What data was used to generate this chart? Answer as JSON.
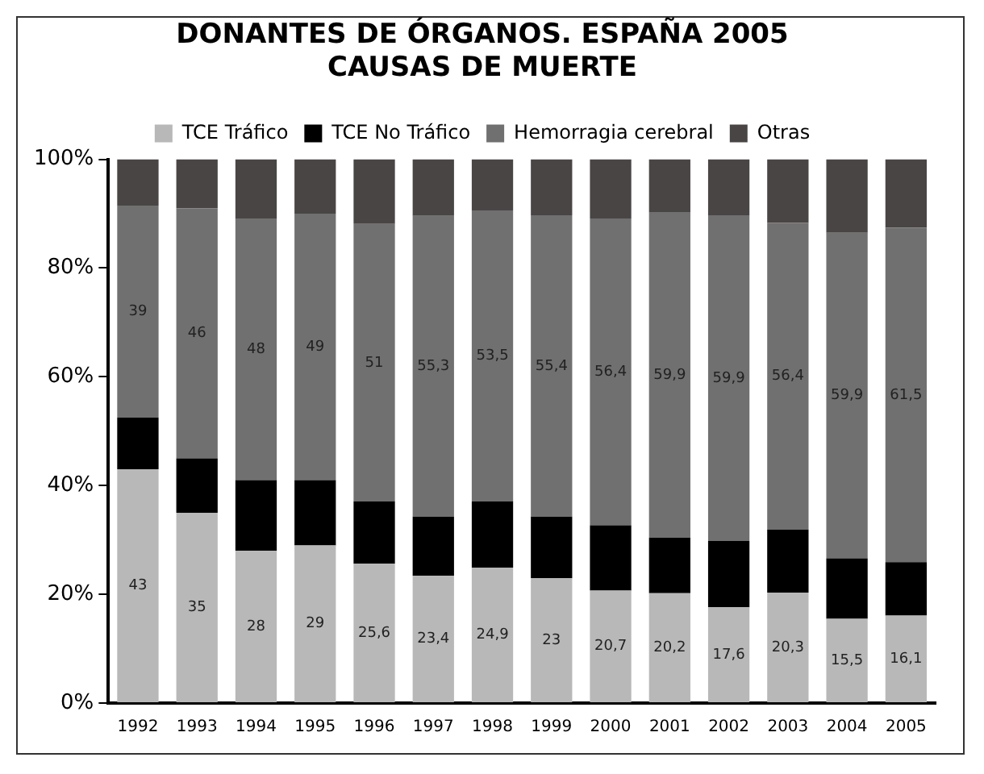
{
  "chart_data": {
    "type": "bar",
    "stacked": true,
    "title": [
      "DONANTES DE ÓRGANOS. ESPAÑA 2005",
      "CAUSAS DE MUERTE"
    ],
    "categories": [
      "1992",
      "1993",
      "1994",
      "1995",
      "1996",
      "1997",
      "1998",
      "1999",
      "2000",
      "2001",
      "2002",
      "2003",
      "2004",
      "2005"
    ],
    "series": [
      {
        "name": "TCE Tráfico",
        "color": "#b8b8b8",
        "values": [
          43,
          35,
          28,
          29,
          25.6,
          23.4,
          24.9,
          23,
          20.7,
          20.2,
          17.6,
          20.3,
          15.5,
          16.1
        ],
        "value_labels": [
          "43",
          "35",
          "28",
          "29",
          "25,6",
          "23,4",
          "24,9",
          "23",
          "20,7",
          "20,2",
          "17,6",
          "20,3",
          "15,5",
          "16,1"
        ]
      },
      {
        "name": "TCE No Tráfico",
        "color": "#000000",
        "values": [
          9.5,
          10,
          13,
          12,
          11.5,
          10.9,
          12.2,
          11.3,
          12,
          10.2,
          12.2,
          11.6,
          11.1,
          9.8
        ]
      },
      {
        "name": "Hemorragia cerebral",
        "color": "#707070",
        "values": [
          39,
          46,
          48,
          49,
          51,
          55.3,
          53.5,
          55.4,
          56.4,
          59.9,
          59.9,
          56.4,
          59.9,
          61.5
        ],
        "value_labels": [
          "39",
          "46",
          "48",
          "49",
          "51",
          "55,3",
          "53,5",
          "55,4",
          "56,4",
          "59,9",
          "59,9",
          "56,4",
          "59,9",
          "61,5"
        ]
      },
      {
        "name": "Otras",
        "color": "#4a4545",
        "values": [
          8.5,
          9,
          11,
          10,
          11.9,
          10.4,
          9.4,
          10.3,
          10.9,
          9.7,
          10.3,
          11.7,
          13.5,
          12.6
        ]
      }
    ],
    "ylim": [
      0,
      100
    ],
    "yticks": [
      {
        "value": 0,
        "label": "0%"
      },
      {
        "value": 20,
        "label": "20%"
      },
      {
        "value": 40,
        "label": "40%"
      },
      {
        "value": 60,
        "label": "60%"
      },
      {
        "value": 80,
        "label": "80%"
      },
      {
        "value": 100,
        "label": "100%"
      }
    ],
    "grid": false,
    "legend": "top"
  }
}
